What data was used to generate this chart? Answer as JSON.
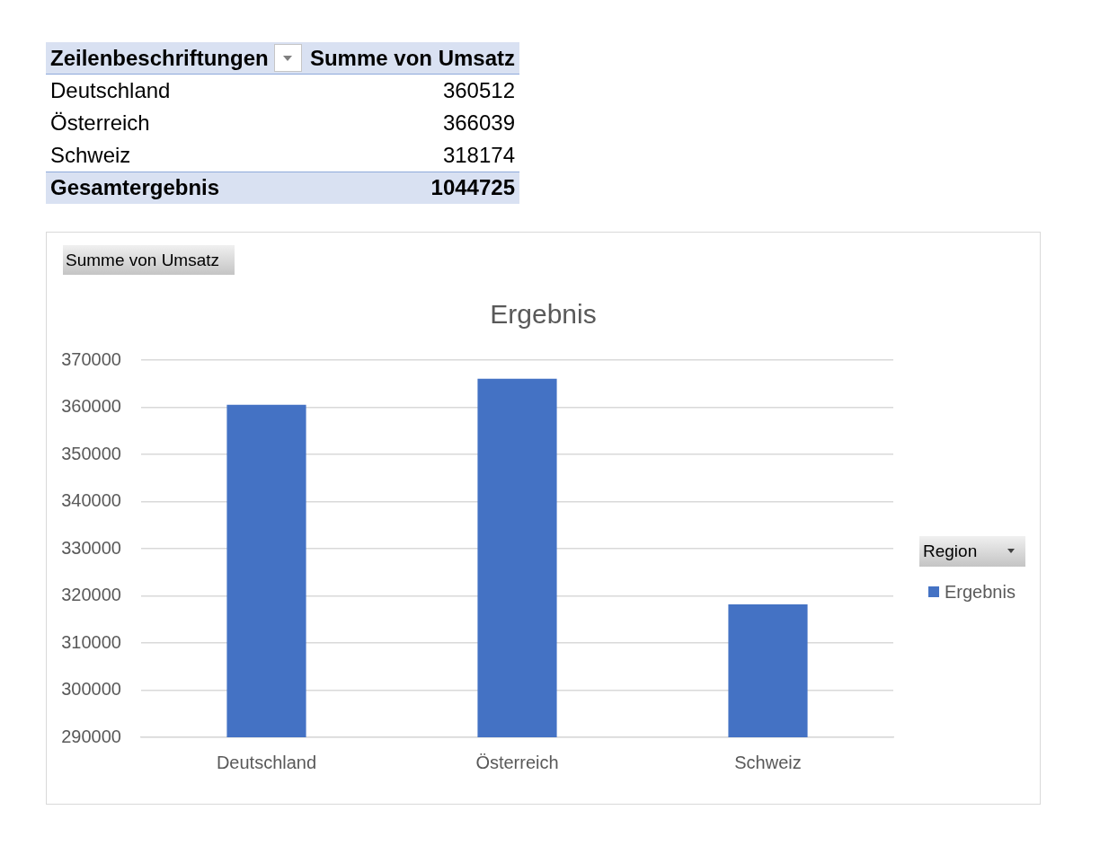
{
  "chart_data": {
    "type": "bar",
    "title": "Ergebnis",
    "categories": [
      "Deutschland",
      "Österreich",
      "Schweiz"
    ],
    "series": [
      {
        "name": "Ergebnis",
        "color": "#4472c4",
        "values": [
          360512,
          366039,
          318174
        ]
      }
    ],
    "ylim": [
      290000,
      370000
    ],
    "yticks": [
      290000,
      300000,
      310000,
      320000,
      330000,
      340000,
      350000,
      360000,
      370000
    ],
    "grid": "y",
    "legend": "right",
    "legend_title": "Region",
    "annotations": [
      "Zeilenbeschriftungen",
      "Summe von Umsatz",
      "360512",
      "366039",
      "318174",
      "Gesamtergebnis",
      "1044725",
      "Summe von Umsatz"
    ]
  }
}
